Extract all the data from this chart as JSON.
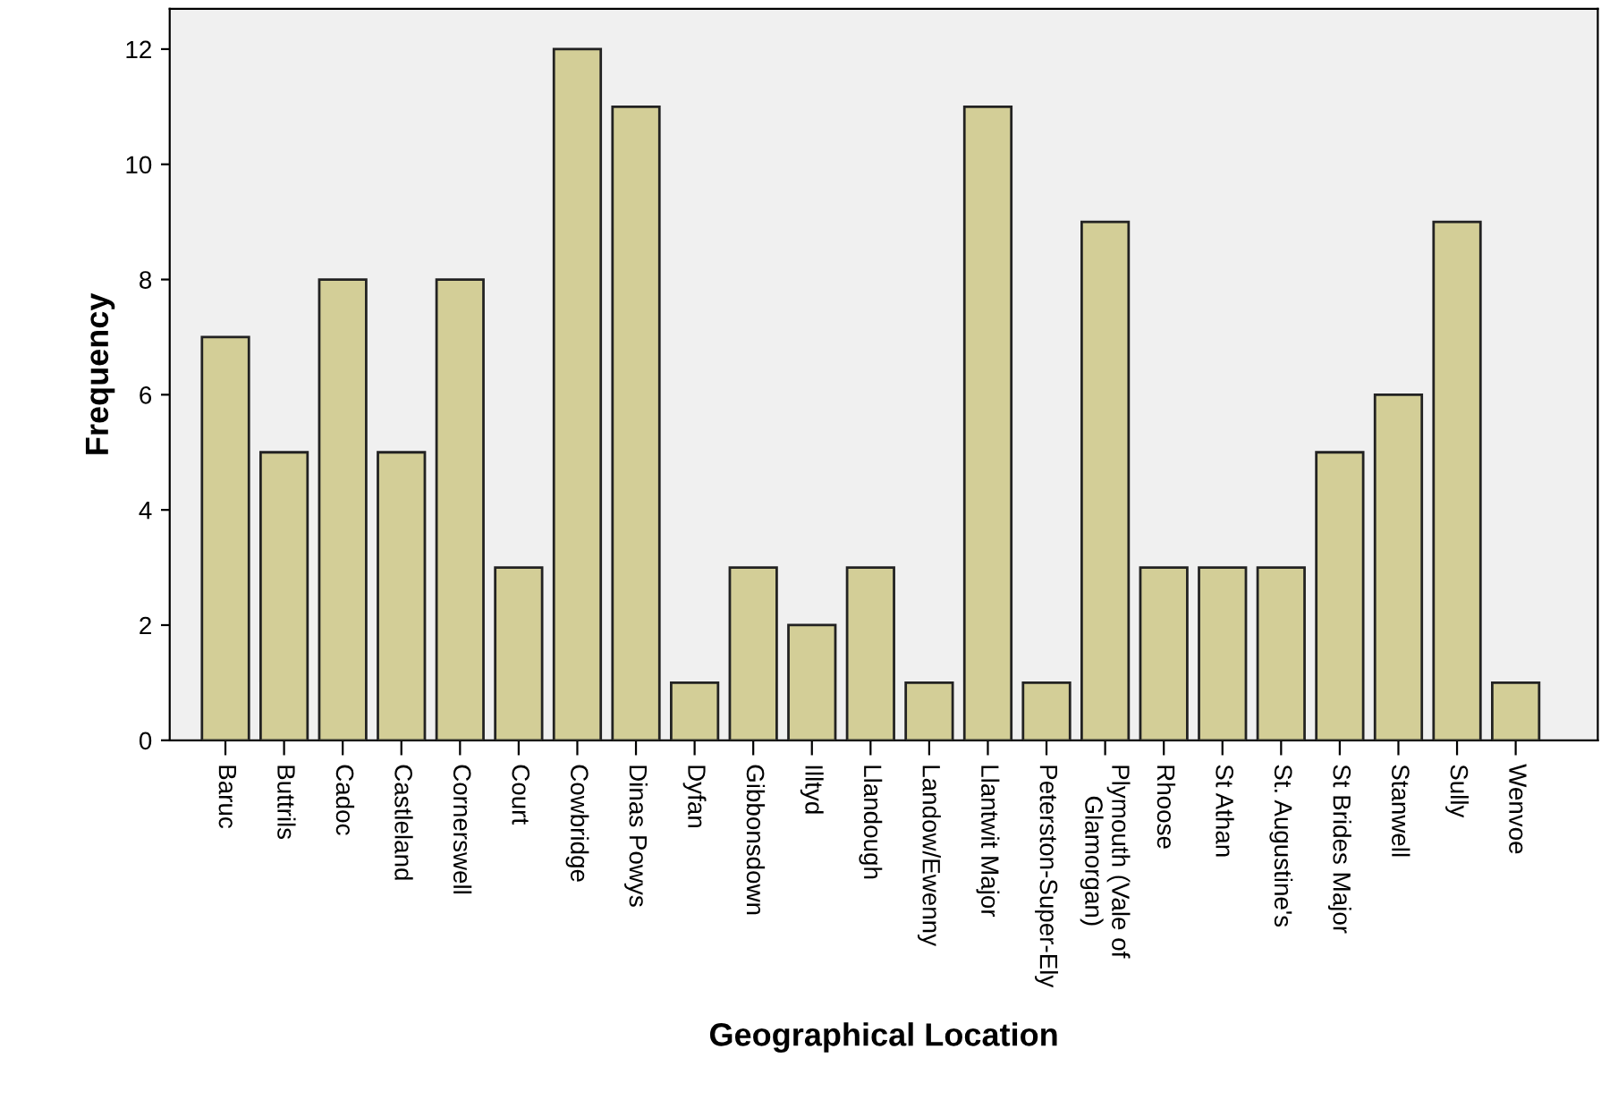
{
  "chart_data": {
    "type": "bar",
    "xlabel": "Geographical Location",
    "ylabel": "Frequency",
    "categories": [
      "Baruc",
      "Buttrils",
      "Cadoc",
      "Castleland",
      "Cornerswell",
      "Court",
      "Cowbridge",
      "Dinas Powys",
      "Dyfan",
      "Gibbonsdown",
      "Illtyd",
      "Llandough",
      "Landow/Ewenny",
      "Llantwit Major",
      "Peterston-Super-Ely",
      "Plymouth (Vale of\nGlamorgan)",
      "Rhoose",
      "St Athan",
      "St. Augustine's",
      "St Brides Major",
      "Stanwell",
      "Sully",
      "Wenvoe"
    ],
    "values": [
      7,
      5,
      8,
      5,
      8,
      3,
      12,
      11,
      1,
      3,
      2,
      3,
      1,
      11,
      1,
      9,
      3,
      3,
      3,
      5,
      6,
      9,
      1
    ],
    "color": "#d3ce97",
    "ylim": [
      0,
      12.7
    ],
    "yticks": [
      0,
      2,
      4,
      6,
      8,
      10,
      12
    ],
    "grid": false,
    "legend": false
  }
}
